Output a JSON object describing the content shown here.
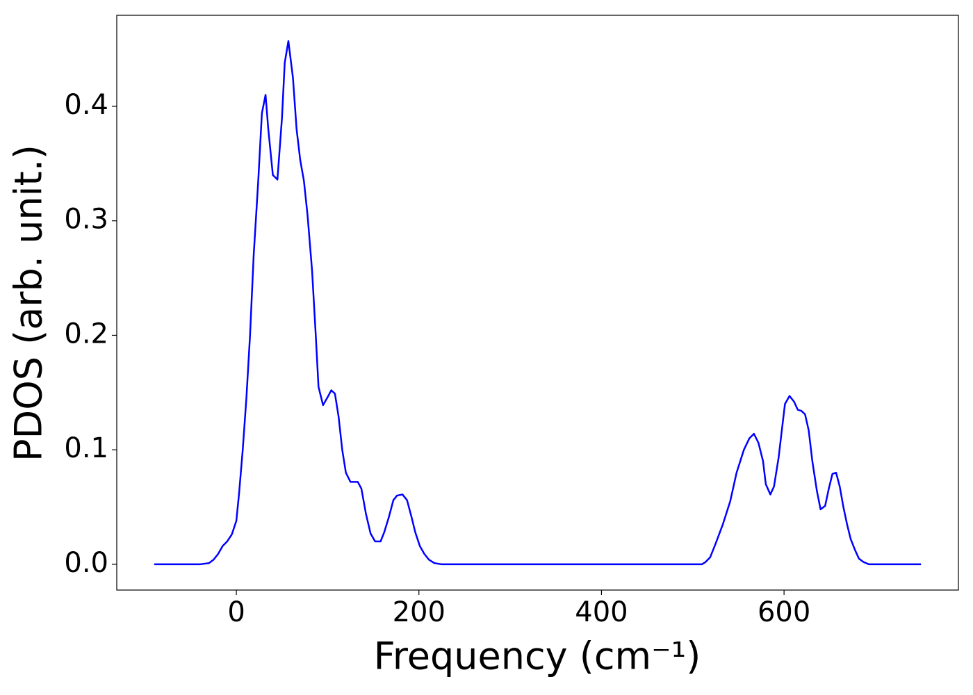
{
  "chart_data": {
    "type": "line",
    "x_label": "Frequency (cm⁻¹)",
    "y_label": "PDOS (arb. unit.)",
    "color": "#0000ff",
    "xlim": [
      -131,
      791
    ],
    "ylim": [
      -0.0225,
      0.4795
    ],
    "xticks": [
      0,
      200,
      400,
      600
    ],
    "yticks": [
      {
        "value": 0,
        "label": "0.0"
      },
      0.1,
      0.2,
      0.3,
      0.4
    ],
    "x": [
      -90,
      -40,
      -30,
      -25,
      -20,
      -15,
      -10,
      -5,
      0,
      3,
      7,
      11,
      15,
      19,
      24,
      28,
      32,
      35,
      40,
      45,
      50,
      53,
      57,
      62,
      66,
      70,
      74,
      78,
      83,
      87,
      90,
      95,
      100,
      104,
      108,
      112,
      116,
      120,
      125,
      133,
      137,
      142,
      147,
      152,
      158,
      162,
      167,
      172,
      176,
      182,
      187,
      192,
      196,
      201,
      206,
      211,
      217,
      225,
      510,
      514,
      519,
      525,
      533,
      541,
      548,
      556,
      562,
      567,
      572,
      577,
      580,
      585,
      589,
      594,
      598,
      601,
      606,
      611,
      615,
      619,
      623,
      627,
      631,
      636,
      640,
      645,
      649,
      653,
      657,
      661,
      665,
      669,
      673,
      678,
      682,
      687,
      693,
      750
    ],
    "values": [
      0,
      0,
      0.001,
      0.004,
      0.009,
      0.016,
      0.02,
      0.026,
      0.038,
      0.062,
      0.1,
      0.145,
      0.2,
      0.27,
      0.335,
      0.394,
      0.41,
      0.38,
      0.34,
      0.336,
      0.39,
      0.438,
      0.457,
      0.425,
      0.38,
      0.353,
      0.335,
      0.305,
      0.256,
      0.2,
      0.155,
      0.139,
      0.146,
      0.152,
      0.149,
      0.129,
      0.1,
      0.08,
      0.072,
      0.072,
      0.066,
      0.044,
      0.027,
      0.02,
      0.02,
      0.028,
      0.041,
      0.056,
      0.06,
      0.061,
      0.056,
      0.041,
      0.028,
      0.016,
      0.009,
      0.004,
      0.001,
      0,
      0,
      0.002,
      0.006,
      0.018,
      0.035,
      0.055,
      0.08,
      0.1,
      0.11,
      0.114,
      0.106,
      0.09,
      0.07,
      0.061,
      0.068,
      0.093,
      0.12,
      0.14,
      0.147,
      0.142,
      0.135,
      0.134,
      0.131,
      0.117,
      0.09,
      0.064,
      0.048,
      0.051,
      0.066,
      0.079,
      0.08,
      0.068,
      0.05,
      0.035,
      0.022,
      0.012,
      0.005,
      0.002,
      0,
      0
    ]
  }
}
